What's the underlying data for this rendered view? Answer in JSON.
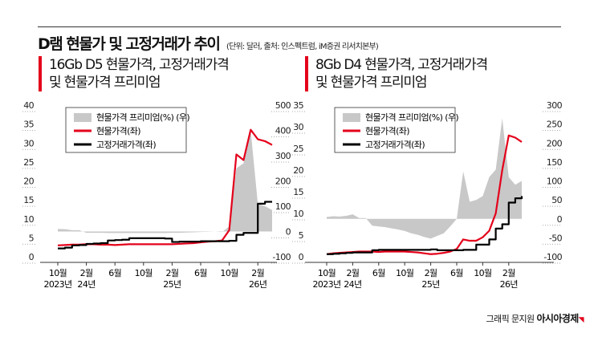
{
  "header": {
    "title": "D램 현물가 및 고정거래가 추이",
    "unit_source": "(단위: 달러,  출처: 인스펙트럼, iM증권 리서치본부)"
  },
  "credit": {
    "label": "그래픽 문지원",
    "brand": "아시아경제"
  },
  "colors": {
    "spot": "#e4001b",
    "fixed": "#000000",
    "premium": "#c8c8c8",
    "accent": "#e4001b"
  },
  "chart_data": [
    {
      "type": "line",
      "title": "16Gb D5 현물가격, 고정거래가격",
      "title2": "및 현물가격 프리미엄",
      "x": [
        "2023-10",
        "2023-11",
        "2023-12",
        "2024-01",
        "2024-02",
        "2024-03",
        "2024-04",
        "2024-05",
        "2024-06",
        "2024-07",
        "2024-08",
        "2024-09",
        "2024-10",
        "2024-11",
        "2024-12",
        "2025-01",
        "2025-02",
        "2025-03",
        "2025-04",
        "2025-05",
        "2025-06",
        "2025-07",
        "2025-08",
        "2025-09",
        "2025-10",
        "2025-11",
        "2025-12",
        "2026-01",
        "2026-02",
        "2026-03",
        "2026-04"
      ],
      "x_tick_labels": [
        {
          "m": "10월",
          "y": "2023년",
          "i": 0
        },
        {
          "m": "2월",
          "y": "24년",
          "i": 4
        },
        {
          "m": "6월",
          "y": "",
          "i": 8
        },
        {
          "m": "10월",
          "y": "",
          "i": 12
        },
        {
          "m": "2월",
          "y": "25년",
          "i": 16
        },
        {
          "m": "6월",
          "y": "",
          "i": 20
        },
        {
          "m": "10월",
          "y": "",
          "i": 24
        },
        {
          "m": "2월",
          "y": "26년",
          "i": 28
        }
      ],
      "ylim_left": [
        0,
        40
      ],
      "yticks_left": [
        "0",
        "5",
        "10",
        "15",
        "20",
        "25",
        "30",
        "35",
        "40"
      ],
      "ylim_right": [
        -100,
        500
      ],
      "yticks_right": [
        "-100",
        "0",
        "100",
        "200",
        "300",
        "400",
        "500"
      ],
      "legend": [
        "현물가격 프리미엄(%) (우)",
        "현물가격(좌)",
        "고정거래가격(좌)"
      ],
      "legend_position": "top-left",
      "series": [
        {
          "name": "현물가격 프리미엄(%) (우)",
          "axis": "right",
          "kind": "area",
          "values": [
            10,
            9,
            5,
            5,
            -5,
            -5,
            -5,
            -6,
            -6,
            -6,
            -6,
            -6,
            -6,
            -6,
            -6,
            -6,
            -5,
            -5,
            -4,
            -3,
            -2,
            -1,
            0,
            -2,
            20,
            250,
            270,
            400,
            110,
            100,
            85
          ]
        },
        {
          "name": "현물가격(좌)",
          "axis": "left",
          "kind": "line",
          "values": [
            3.0,
            3.1,
            3.2,
            3.2,
            3.3,
            3.3,
            3.2,
            3.2,
            3.1,
            3.2,
            3.3,
            3.3,
            3.3,
            3.3,
            3.3,
            3.3,
            3.3,
            3.4,
            3.5,
            3.6,
            3.8,
            4.0,
            4.1,
            4.3,
            7.0,
            27.0,
            25.5,
            33.5,
            31.0,
            30.5,
            29.5
          ]
        },
        {
          "name": "고정거래가격(좌)",
          "axis": "left",
          "kind": "step",
          "values": [
            2.2,
            2.4,
            3.0,
            3.1,
            3.4,
            3.5,
            3.6,
            4.3,
            4.4,
            4.5,
            4.9,
            4.9,
            4.9,
            4.9,
            4.9,
            4.8,
            3.9,
            4.0,
            4.0,
            4.0,
            4.1,
            4.1,
            4.1,
            4.1,
            4.2,
            5.8,
            6.3,
            6.3,
            14.0,
            14.5,
            14.5
          ]
        }
      ]
    },
    {
      "type": "line",
      "title": "8Gb D4 현물가격, 고정거래가격",
      "title2": "및 현물가격 프리미엄",
      "x": [
        "2023-10",
        "2023-11",
        "2023-12",
        "2024-01",
        "2024-02",
        "2024-03",
        "2024-04",
        "2024-05",
        "2024-06",
        "2024-07",
        "2024-08",
        "2024-09",
        "2024-10",
        "2024-11",
        "2024-12",
        "2025-01",
        "2025-02",
        "2025-03",
        "2025-04",
        "2025-05",
        "2025-06",
        "2025-07",
        "2025-08",
        "2025-09",
        "2025-10",
        "2025-11",
        "2025-12",
        "2026-01",
        "2026-02",
        "2026-03",
        "2026-04"
      ],
      "x_tick_labels": [
        {
          "m": "10월",
          "y": "2023년",
          "i": 0
        },
        {
          "m": "2월",
          "y": "24년",
          "i": 4
        },
        {
          "m": "6월",
          "y": "",
          "i": 8
        },
        {
          "m": "10월",
          "y": "",
          "i": 12
        },
        {
          "m": "2월",
          "y": "25년",
          "i": 16
        },
        {
          "m": "6월",
          "y": "",
          "i": 20
        },
        {
          "m": "10월",
          "y": "",
          "i": 24
        },
        {
          "m": "2월",
          "y": "26년",
          "i": 28
        }
      ],
      "ylim_left": [
        0,
        35
      ],
      "yticks_left": [
        "0",
        "5",
        "10",
        "15",
        "20",
        "25",
        "30",
        "35"
      ],
      "ylim_right": [
        -100,
        300
      ],
      "yticks_right": [
        "-100",
        "-50",
        "0",
        "50",
        "100",
        "150",
        "200",
        "250",
        "300"
      ],
      "legend": [
        "현물가격 프리미엄(%) (우)",
        "현물가격(좌)",
        "고정거래가격(좌)"
      ],
      "legend_position": "top-left",
      "series": [
        {
          "name": "현물가격 프리미엄(%) (우)",
          "axis": "right",
          "kind": "area",
          "values": [
            5,
            7,
            6,
            8,
            12,
            2,
            2,
            -18,
            -20,
            -22,
            -25,
            -28,
            -32,
            -38,
            -42,
            -48,
            -52,
            -45,
            -38,
            -20,
            0,
            125,
            45,
            50,
            60,
            110,
            130,
            265,
            110,
            90,
            100
          ]
        },
        {
          "name": "현물가격(좌)",
          "axis": "left",
          "kind": "line",
          "values": [
            0.6,
            0.8,
            0.9,
            1.0,
            1.1,
            1.2,
            1.2,
            1.2,
            1.1,
            1.2,
            1.2,
            1.2,
            1.2,
            1.1,
            1.0,
            0.8,
            0.6,
            0.7,
            0.9,
            1.2,
            1.8,
            4.0,
            3.7,
            3.7,
            4.5,
            6.0,
            10.0,
            20.0,
            28.0,
            27.5,
            26.5
          ]
        },
        {
          "name": "고정거래가격(좌)",
          "axis": "left",
          "kind": "step",
          "values": [
            0.6,
            0.7,
            0.8,
            0.9,
            1.0,
            1.0,
            1.0,
            1.5,
            1.6,
            1.6,
            1.6,
            1.6,
            1.6,
            1.6,
            1.6,
            1.6,
            1.7,
            1.5,
            1.5,
            1.5,
            1.5,
            1.6,
            1.6,
            2.8,
            2.8,
            4.0,
            6.5,
            7.5,
            12.5,
            13.5,
            14.0
          ]
        }
      ]
    }
  ]
}
